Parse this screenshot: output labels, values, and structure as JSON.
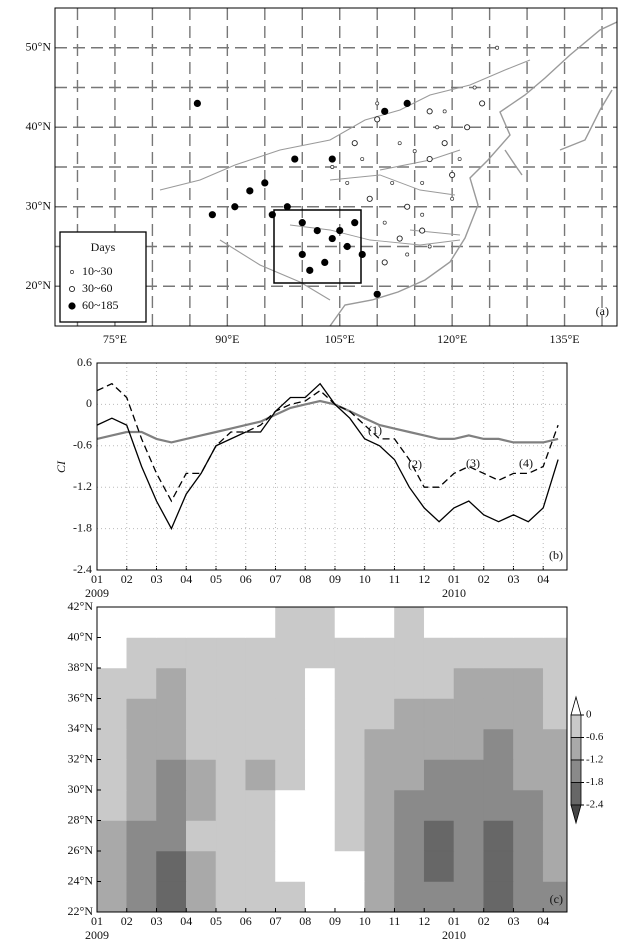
{
  "chart_data": [
    {
      "type": "scatter",
      "label": "(a)",
      "xlim": [
        67,
        142
      ],
      "ylim": [
        15,
        55
      ],
      "xticks": [
        {
          "value": 75,
          "label": "75°E"
        },
        {
          "value": 90,
          "label": "90°E"
        },
        {
          "value": 105,
          "label": "105°E"
        },
        {
          "value": 120,
          "label": "120°E"
        },
        {
          "value": 135,
          "label": "135°E"
        }
      ],
      "yticks": [
        {
          "value": 20,
          "label": "20°N"
        },
        {
          "value": 30,
          "label": "30°N"
        },
        {
          "value": 40,
          "label": "40°N"
        },
        {
          "value": 50,
          "label": "50°N"
        }
      ],
      "minor_xticks": [
        70,
        80,
        85,
        95,
        100,
        110,
        115,
        125,
        130,
        140
      ],
      "minor_yticks": [
        25,
        35,
        45
      ],
      "grid": true,
      "legend": {
        "title": "Days",
        "position": "lower left"
      },
      "series": [
        {
          "name": "10~30",
          "marker": "small",
          "x": [
            110,
            115,
            118,
            112,
            116,
            120,
            123,
            126,
            114,
            108,
            104,
            111,
            117,
            119,
            113,
            121,
            106,
            116
          ],
          "y": [
            43,
            37,
            40,
            33,
            29,
            31,
            45,
            50,
            24,
            36,
            35,
            28,
            25,
            42,
            38,
            36,
            33,
            33
          ]
        },
        {
          "name": "30~60",
          "marker": "open",
          "x": [
            104,
            110,
            114,
            117,
            120,
            113,
            109,
            117,
            122,
            111,
            116,
            107,
            119,
            124
          ],
          "y": [
            36,
            41,
            30,
            36,
            34,
            26,
            31,
            42,
            40,
            23,
            27,
            38,
            38,
            43
          ]
        },
        {
          "name": "60~185",
          "marker": "half",
          "x": [
            86,
            99,
            104,
            111,
            88,
            91,
            93,
            95,
            98,
            100,
            102,
            104,
            106,
            100,
            103,
            105,
            107,
            101,
            108,
            110,
            114,
            96
          ],
          "y": [
            43,
            36,
            36,
            42,
            29,
            30,
            32,
            33,
            30,
            28,
            27,
            26,
            25,
            24,
            23,
            27,
            28,
            22,
            24,
            19,
            43,
            29
          ]
        }
      ]
    },
    {
      "type": "line",
      "label": "(b)",
      "ylabel": "CI",
      "xlim": [
        0,
        15.8
      ],
      "ylim": [
        -2.4,
        0.6
      ],
      "xticks": [
        {
          "value": 0,
          "label": "01"
        },
        {
          "value": 1,
          "label": "02"
        },
        {
          "value": 2,
          "label": "03"
        },
        {
          "value": 3,
          "label": "04"
        },
        {
          "value": 4,
          "label": "05"
        },
        {
          "value": 5,
          "label": "06"
        },
        {
          "value": 6,
          "label": "07"
        },
        {
          "value": 7,
          "label": "08"
        },
        {
          "value": 8,
          "label": "09"
        },
        {
          "value": 9,
          "label": "10"
        },
        {
          "value": 10,
          "label": "11"
        },
        {
          "value": 11,
          "label": "12"
        },
        {
          "value": 12,
          "label": "01"
        },
        {
          "value": 13,
          "label": "02"
        },
        {
          "value": 14,
          "label": "03"
        },
        {
          "value": 15,
          "label": "04"
        }
      ],
      "year_labels": [
        {
          "value": 0,
          "label": "2009"
        },
        {
          "value": 12,
          "label": "2010"
        }
      ],
      "yticks": [
        0.6,
        0,
        -0.6,
        -1.2,
        -1.8,
        -2.4
      ],
      "grid": true,
      "annotations": [
        "(1)",
        "(2)",
        "(3)",
        "(4)"
      ],
      "x": [
        0,
        0.5,
        1,
        1.5,
        2,
        2.5,
        3,
        3.5,
        4,
        4.5,
        5,
        5.5,
        6,
        6.5,
        7,
        7.5,
        8,
        8.5,
        9,
        9.5,
        10,
        10.5,
        11,
        11.5,
        12,
        12.5,
        13,
        13.5,
        14,
        14.5,
        15,
        15.5
      ],
      "series": [
        {
          "color": "#000000",
          "style": "solid",
          "values": [
            -0.3,
            -0.2,
            -0.3,
            -0.9,
            -1.4,
            -1.8,
            -1.3,
            -1.0,
            -0.6,
            -0.5,
            -0.4,
            -0.4,
            -0.1,
            0.1,
            0.1,
            0.3,
            0.0,
            -0.2,
            -0.5,
            -0.6,
            -0.8,
            -1.2,
            -1.5,
            -1.7,
            -1.5,
            -1.4,
            -1.6,
            -1.7,
            -1.6,
            -1.7,
            -1.5,
            -0.8
          ]
        },
        {
          "color": "#000000",
          "style": "dashed",
          "values": [
            0.2,
            0.3,
            0.1,
            -0.5,
            -1.0,
            -1.4,
            -1.0,
            -1.0,
            -0.6,
            -0.4,
            -0.4,
            -0.3,
            -0.1,
            0.0,
            0.05,
            0.2,
            0.0,
            -0.1,
            -0.3,
            -0.5,
            -0.5,
            -0.8,
            -1.2,
            -1.2,
            -1.0,
            -0.9,
            -1.0,
            -1.1,
            -1.0,
            -1.0,
            -0.9,
            -0.3
          ]
        },
        {
          "color": "#808080",
          "style": "solid",
          "values": [
            -0.5,
            -0.45,
            -0.4,
            -0.4,
            -0.5,
            -0.55,
            -0.5,
            -0.45,
            -0.4,
            -0.35,
            -0.3,
            -0.25,
            -0.15,
            -0.05,
            0.0,
            0.05,
            0.0,
            -0.1,
            -0.2,
            -0.3,
            -0.35,
            -0.4,
            -0.45,
            -0.5,
            -0.5,
            -0.45,
            -0.5,
            -0.5,
            -0.55,
            -0.55,
            -0.55,
            -0.5
          ]
        }
      ]
    },
    {
      "type": "contour",
      "label": "(c)",
      "xlim": [
        0,
        15.8
      ],
      "ylim": [
        22,
        42
      ],
      "xticks": [
        {
          "value": 0,
          "label": "01"
        },
        {
          "value": 1,
          "label": "02"
        },
        {
          "value": 2,
          "label": "03"
        },
        {
          "value": 3,
          "label": "04"
        },
        {
          "value": 4,
          "label": "05"
        },
        {
          "value": 5,
          "label": "06"
        },
        {
          "value": 6,
          "label": "07"
        },
        {
          "value": 7,
          "label": "08"
        },
        {
          "value": 8,
          "label": "09"
        },
        {
          "value": 9,
          "label": "10"
        },
        {
          "value": 10,
          "label": "11"
        },
        {
          "value": 11,
          "label": "12"
        },
        {
          "value": 12,
          "label": "01"
        },
        {
          "value": 13,
          "label": "02"
        },
        {
          "value": 14,
          "label": "03"
        },
        {
          "value": 15,
          "label": "04"
        }
      ],
      "year_labels": [
        {
          "value": 0,
          "label": "2009"
        },
        {
          "value": 12,
          "label": "2010"
        }
      ],
      "yticks": [
        {
          "value": 22,
          "label": "22°N"
        },
        {
          "value": 24,
          "label": "24°N"
        },
        {
          "value": 26,
          "label": "26°N"
        },
        {
          "value": 28,
          "label": "28°N"
        },
        {
          "value": 30,
          "label": "30°N"
        },
        {
          "value": 32,
          "label": "32°N"
        },
        {
          "value": 34,
          "label": "34°N"
        },
        {
          "value": 36,
          "label": "36°N"
        },
        {
          "value": 38,
          "label": "38°N"
        },
        {
          "value": 40,
          "label": "40°N"
        },
        {
          "value": 42,
          "label": "42°N"
        }
      ],
      "y": [
        22,
        24,
        26,
        28,
        30,
        32,
        34,
        36,
        38,
        40
      ],
      "values": [
        [
          -0.8,
          -1.6,
          -2.0,
          -0.8,
          -0.4,
          -0.3,
          -0.2,
          0.3,
          0.2,
          -0.8,
          -1.4,
          -1.8,
          -1.6,
          -2.0,
          -1.8,
          -1.4
        ],
        [
          -0.8,
          -1.4,
          -1.9,
          -0.7,
          -0.4,
          -0.3,
          0.2,
          0.3,
          0.1,
          -0.9,
          -1.6,
          -2.0,
          -1.7,
          -2.1,
          -1.7,
          -1.2
        ],
        [
          -0.7,
          -1.3,
          -1.7,
          -0.6,
          -0.5,
          -0.4,
          0.1,
          0.2,
          -0.1,
          -0.9,
          -1.5,
          -1.9,
          -1.6,
          -1.9,
          -1.5,
          -1.0
        ],
        [
          -0.6,
          -1.1,
          -1.4,
          -0.8,
          -0.5,
          -0.6,
          0.1,
          0.2,
          -0.2,
          -0.8,
          -1.3,
          -1.5,
          -1.5,
          -1.7,
          -1.3,
          -0.9
        ],
        [
          -0.5,
          -0.9,
          -1.3,
          -0.7,
          -0.4,
          -0.7,
          -0.3,
          0.1,
          -0.4,
          -0.9,
          -1.2,
          -1.3,
          -1.3,
          -1.4,
          -1.2,
          -0.8
        ],
        [
          -0.4,
          -0.8,
          -1.2,
          -0.6,
          -0.3,
          -0.5,
          -0.2,
          0.1,
          -0.3,
          -0.7,
          -0.9,
          -1.0,
          -1.1,
          -1.3,
          -1.1,
          -0.7
        ],
        [
          -0.4,
          -0.7,
          -1.0,
          -0.5,
          -0.3,
          -0.4,
          -0.1,
          0.2,
          -0.2,
          -0.6,
          -0.8,
          -0.8,
          -0.9,
          -1.1,
          -1.0,
          -0.6
        ],
        [
          -0.3,
          -0.6,
          -0.8,
          -0.4,
          -0.3,
          -0.3,
          -0.2,
          0.1,
          -0.1,
          -0.4,
          -0.5,
          -0.6,
          -0.7,
          -0.8,
          -0.7,
          -0.5
        ],
        [
          0.1,
          -0.3,
          -0.4,
          -0.3,
          -0.2,
          -0.2,
          -0.3,
          -0.2,
          -0.1,
          -0.1,
          -0.3,
          -0.3,
          -0.4,
          -0.4,
          -0.3,
          -0.2
        ],
        [
          0.2,
          0.2,
          0.1,
          0.2,
          0.2,
          0.3,
          -0.3,
          -0.2,
          0.1,
          0.2,
          -0.3,
          0.2,
          0.2,
          0.2,
          0.2,
          0.2
        ]
      ],
      "colorbar": {
        "ticks": [
          0,
          -0.6,
          -1.2,
          -1.8,
          -2.4
        ],
        "colors": [
          "#ffffff",
          "#c9c9c9",
          "#a9a9a9",
          "#8a8a8a",
          "#676767",
          "#454545"
        ]
      }
    }
  ]
}
